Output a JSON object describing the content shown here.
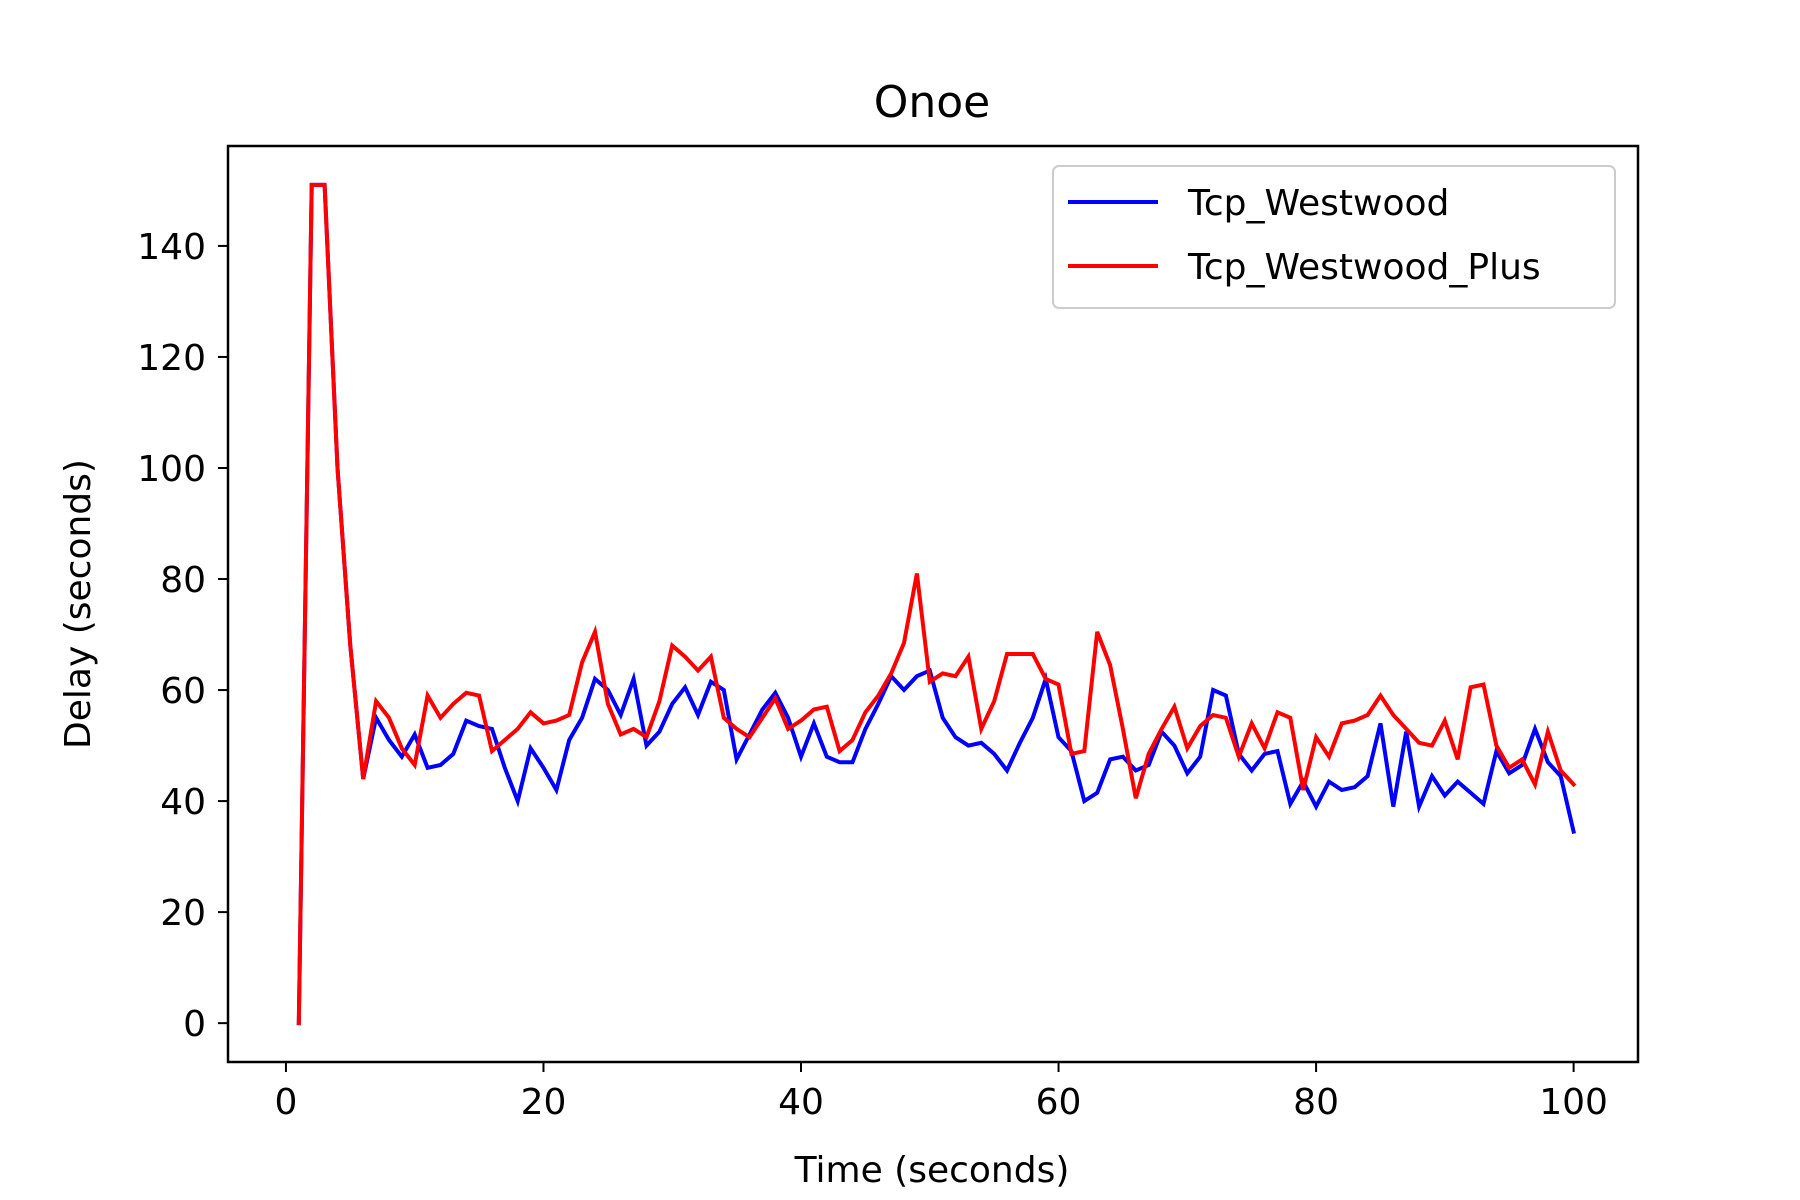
{
  "chart_data": {
    "type": "line",
    "title": "Onoe",
    "xlabel": "Time (seconds)",
    "ylabel": "Delay (seconds)",
    "xlim": [
      -4.5,
      105
    ],
    "ylim": [
      -7,
      158
    ],
    "xticks": [
      0,
      20,
      40,
      60,
      80,
      100
    ],
    "yticks": [
      0,
      20,
      40,
      60,
      80,
      100,
      120,
      140
    ],
    "grid": false,
    "legend": "upper right",
    "series": [
      {
        "name": "Tcp_Westwood",
        "color": "#0000ff",
        "x": [
          1,
          2,
          3,
          4,
          5,
          6,
          7,
          8,
          9,
          10,
          11,
          12,
          13,
          14,
          15,
          16,
          17,
          18,
          19,
          20,
          21,
          22,
          23,
          24,
          25,
          26,
          27,
          28,
          29,
          30,
          31,
          32,
          33,
          34,
          35,
          36,
          37,
          38,
          39,
          40,
          41,
          42,
          43,
          44,
          45,
          46,
          47,
          48,
          49,
          50,
          51,
          52,
          53,
          54,
          55,
          56,
          57,
          58,
          59,
          60,
          61,
          62,
          63,
          64,
          65,
          66,
          67,
          68,
          69,
          70,
          71,
          72,
          73,
          74,
          75,
          76,
          77,
          78,
          79,
          80,
          81,
          82,
          83,
          84,
          85,
          86,
          87,
          88,
          89,
          90,
          91,
          92,
          93,
          94,
          95,
          96,
          97,
          98,
          99,
          100
        ],
        "y": [
          0,
          151,
          151,
          100,
          68,
          44,
          55,
          51,
          48,
          52,
          46,
          46.5,
          48.5,
          54.5,
          53.5,
          53,
          46,
          40,
          49.5,
          46,
          42,
          51,
          55,
          62,
          60,
          55.5,
          62,
          50,
          52.5,
          57.5,
          60.5,
          55.5,
          61.5,
          60,
          47.5,
          52,
          56.5,
          59.5,
          55,
          48,
          54,
          48,
          47,
          47,
          53,
          57.5,
          62.5,
          60,
          62.5,
          63.5,
          55,
          51.5,
          50,
          50.5,
          48.5,
          45.5,
          50.5,
          55,
          62,
          51.5,
          49,
          40,
          41.5,
          47.5,
          48,
          45.5,
          46.5,
          52.5,
          50,
          45,
          48,
          60,
          59,
          48.5,
          45.5,
          48.5,
          49,
          39.5,
          43.5,
          39,
          43.5,
          42,
          42.5,
          44.5,
          54,
          39,
          52.5,
          39,
          44.5,
          41,
          43.5,
          41.5,
          39.5,
          49,
          45,
          46.5,
          53,
          47,
          44.5,
          34.5
        ]
      },
      {
        "name": "Tcp_Westwood_Plus",
        "color": "#ff0000",
        "x": [
          1,
          2,
          3,
          4,
          5,
          6,
          7,
          8,
          9,
          10,
          11,
          12,
          13,
          14,
          15,
          16,
          17,
          18,
          19,
          20,
          21,
          22,
          23,
          24,
          25,
          26,
          27,
          28,
          29,
          30,
          31,
          32,
          33,
          34,
          35,
          36,
          37,
          38,
          39,
          40,
          41,
          42,
          43,
          44,
          45,
          46,
          47,
          48,
          49,
          50,
          51,
          52,
          53,
          54,
          55,
          56,
          57,
          58,
          59,
          60,
          61,
          62,
          63,
          64,
          65,
          66,
          67,
          68,
          69,
          70,
          71,
          72,
          73,
          74,
          75,
          76,
          77,
          78,
          79,
          80,
          81,
          82,
          83,
          84,
          85,
          86,
          87,
          88,
          89,
          90,
          91,
          92,
          93,
          94,
          95,
          96,
          97,
          98,
          99,
          100
        ],
        "y": [
          0,
          151,
          151,
          100,
          68,
          44,
          58,
          55,
          49.5,
          46.5,
          59,
          55,
          57.5,
          59.5,
          59,
          49,
          51,
          53,
          56,
          54,
          54.5,
          55.5,
          65,
          70.5,
          57.5,
          52,
          53,
          51.5,
          58,
          68,
          66,
          63.5,
          66,
          55,
          53,
          51.5,
          55,
          58.5,
          53,
          54.5,
          56.5,
          57,
          49,
          51,
          56,
          59,
          63,
          68.5,
          81,
          61.5,
          63,
          62.5,
          66,
          53,
          58,
          66.5,
          66.5,
          66.5,
          62,
          61,
          48.5,
          49,
          70.5,
          64.5,
          53,
          40.5,
          48.5,
          53,
          57,
          49.5,
          53.5,
          55.5,
          55,
          48,
          54,
          49.5,
          56,
          55,
          42,
          51.5,
          48,
          54,
          54.5,
          55.5,
          59,
          55.5,
          53,
          50.5,
          50,
          54.5,
          47.5,
          60.5,
          61,
          50,
          46,
          47.5,
          43,
          52.5,
          45.5,
          43
        ]
      }
    ]
  }
}
